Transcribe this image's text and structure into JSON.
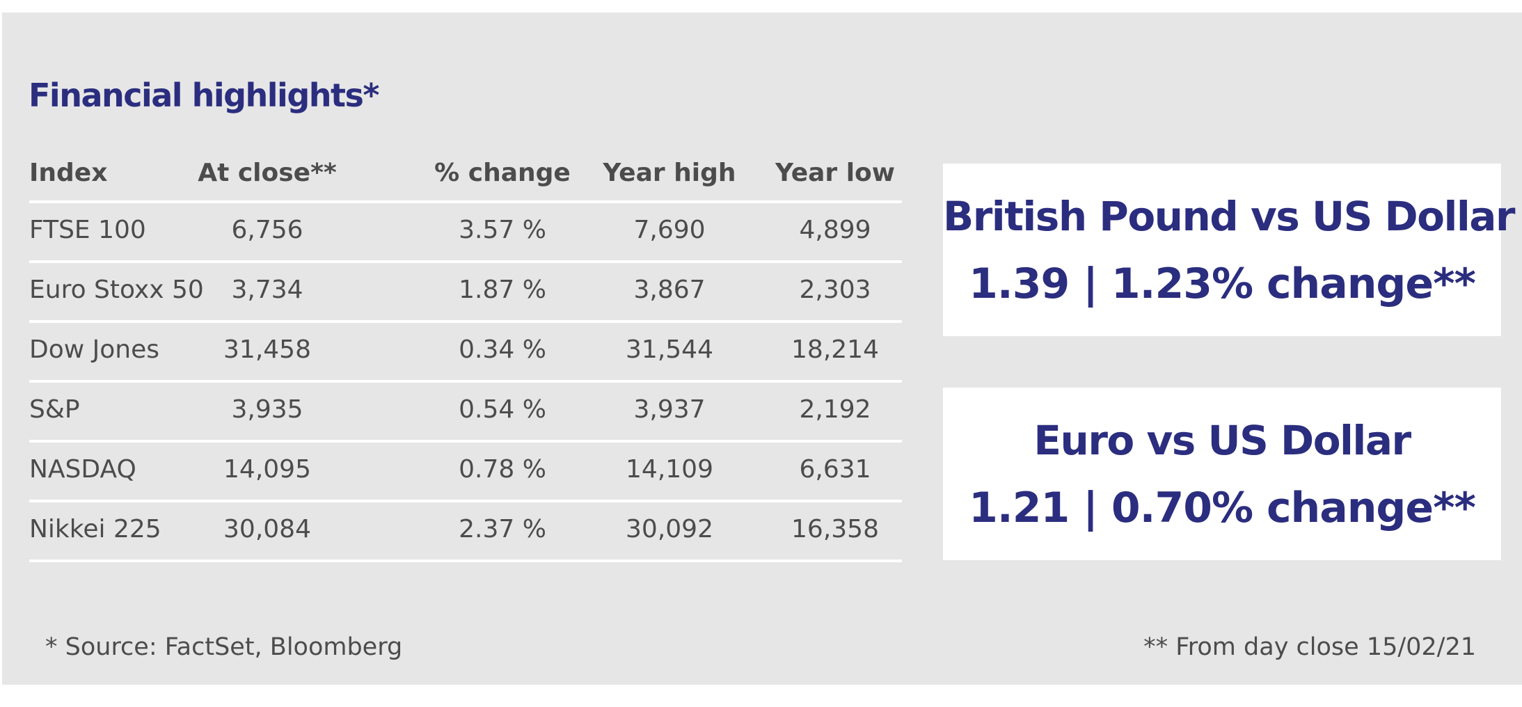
{
  "title": "Financial highlights*",
  "table": {
    "headers": [
      "Index",
      "At close**",
      "% change",
      "Year high",
      "Year low"
    ],
    "rows": [
      [
        "FTSE 100",
        "6,756",
        "3.57 %",
        "7,690",
        "4,899"
      ],
      [
        "Euro Stoxx 50",
        "3,734",
        "1.87 %",
        "3,867",
        "2,303"
      ],
      [
        "Dow Jones",
        "31,458",
        "0.34 %",
        "31,544",
        "18,214"
      ],
      [
        "S&P",
        "3,935",
        "0.54 %",
        "3,937",
        "2,192"
      ],
      [
        "NASDAQ",
        "14,095",
        "0.78 %",
        "14,109",
        "6,631"
      ],
      [
        "Nikkei 225",
        "30,084",
        "2.37 %",
        "30,092",
        "16,358"
      ]
    ]
  },
  "fx": [
    {
      "title": "British Pound vs US Dollar",
      "value": "1.39 | 1.23% change**"
    },
    {
      "title": "Euro vs US Dollar",
      "value": "1.21 | 0.70% change**"
    }
  ],
  "footnotes": {
    "left": "* Source: FactSet, Bloomberg",
    "right": "** From day close 15/02/21"
  },
  "colors": {
    "background": "#e6e6e6",
    "accent": "#2b2d7f",
    "text": "#4c4c4c"
  }
}
